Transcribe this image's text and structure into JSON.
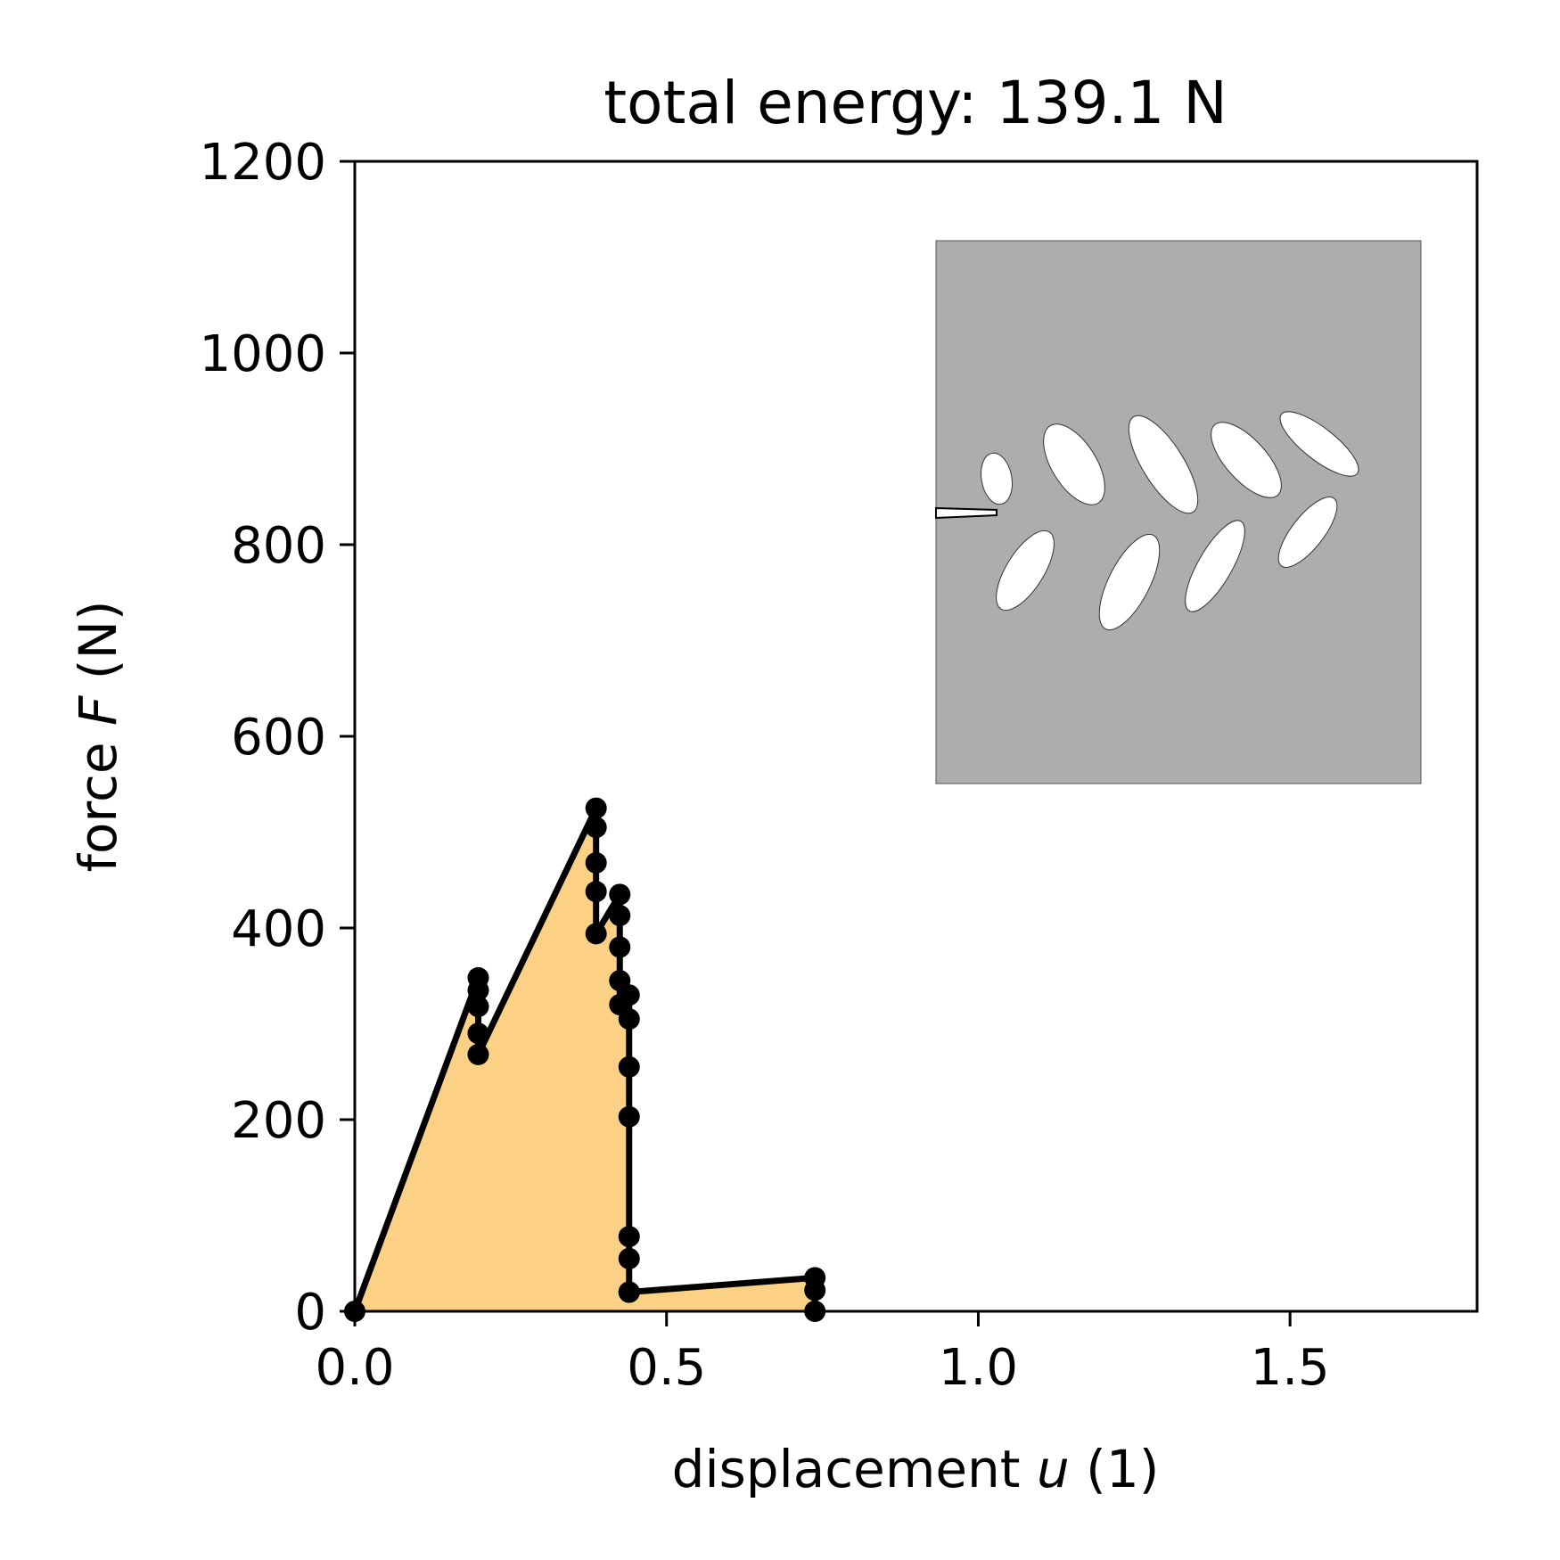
{
  "chart_data": {
    "type": "line",
    "title": "total energy: 139.1 N",
    "xlabel_prefix": "displacement ",
    "xlabel_var": "u",
    "xlabel_suffix": " (1)",
    "ylabel_prefix": "force ",
    "ylabel_var": "F",
    "ylabel_suffix": " (N)",
    "xlim": [
      0,
      1.8
    ],
    "ylim": [
      0,
      1200
    ],
    "xticks": [
      0.0,
      0.5,
      1.0,
      1.5
    ],
    "xtick_labels": [
      "0.0",
      "0.5",
      "1.0",
      "1.5"
    ],
    "yticks": [
      0,
      200,
      400,
      600,
      800,
      1000,
      1200
    ],
    "ytick_labels": [
      "0",
      "200",
      "400",
      "600",
      "800",
      "1000",
      "1200"
    ],
    "grid": false,
    "fill_color": "#fdd185",
    "line_color": "#000000",
    "inset_color": "#adadad",
    "series": [
      {
        "x": [
          0.0,
          0.198,
          0.198,
          0.198,
          0.198,
          0.198,
          0.387,
          0.387,
          0.387,
          0.387,
          0.387,
          0.425,
          0.425,
          0.425,
          0.425,
          0.425,
          0.44,
          0.44,
          0.44,
          0.44,
          0.44,
          0.44,
          0.44,
          0.44,
          0.738,
          0.738,
          0.738
        ],
        "y": [
          0,
          348,
          335,
          318,
          290,
          268,
          525,
          505,
          468,
          438,
          394,
          435,
          413,
          380,
          345,
          320,
          330,
          305,
          255,
          203,
          78,
          55,
          20,
          20,
          35,
          22,
          0
        ]
      }
    ]
  }
}
